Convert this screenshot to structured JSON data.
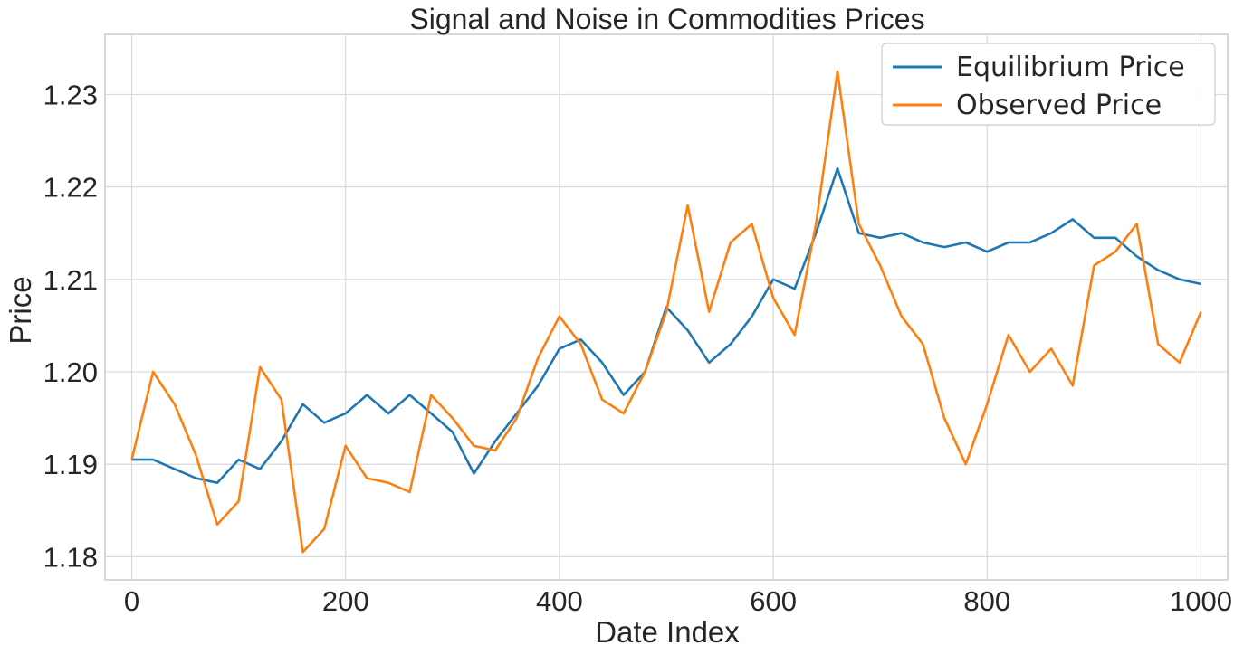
{
  "chart_data": {
    "type": "line",
    "title": "Signal and Noise in Commodities Prices",
    "xlabel": "Date Index",
    "ylabel": "Price",
    "xlim": [
      -25,
      1025
    ],
    "ylim": [
      1.1775,
      1.2365
    ],
    "xticks": [
      0,
      200,
      400,
      600,
      800,
      1000
    ],
    "xtick_labels": [
      "0",
      "200",
      "400",
      "600",
      "800",
      "1000"
    ],
    "yticks": [
      1.18,
      1.19,
      1.2,
      1.21,
      1.22,
      1.23
    ],
    "ytick_labels": [
      "1.18",
      "1.19",
      "1.20",
      "1.21",
      "1.22",
      "1.23"
    ],
    "grid": true,
    "legend_position": "top-right",
    "colors": {
      "Equilibrium Price": "#1f77b4",
      "Observed Price": "#ff7f0e"
    },
    "x": [
      0,
      20,
      40,
      60,
      80,
      100,
      120,
      140,
      160,
      180,
      200,
      220,
      240,
      260,
      280,
      300,
      320,
      340,
      360,
      380,
      400,
      420,
      440,
      460,
      480,
      500,
      520,
      540,
      560,
      580,
      600,
      620,
      640,
      660,
      680,
      700,
      720,
      740,
      760,
      780,
      800,
      820,
      840,
      860,
      880,
      900,
      920,
      940,
      960,
      980,
      1000
    ],
    "series": [
      {
        "name": "Equilibrium Price",
        "values": [
          1.1905,
          1.1905,
          1.1895,
          1.1885,
          1.188,
          1.1905,
          1.1895,
          1.1925,
          1.1965,
          1.1945,
          1.1955,
          1.1975,
          1.1955,
          1.1975,
          1.1955,
          1.1935,
          1.189,
          1.1925,
          1.1955,
          1.1985,
          1.2025,
          1.2035,
          1.201,
          1.1975,
          1.2,
          1.207,
          1.2045,
          1.201,
          1.203,
          1.206,
          1.21,
          1.209,
          1.215,
          1.222,
          1.215,
          1.2145,
          1.215,
          1.214,
          1.2135,
          1.214,
          1.213,
          1.214,
          1.214,
          1.215,
          1.2165,
          1.2145,
          1.2145,
          1.2125,
          1.211,
          1.21,
          1.2095
        ]
      },
      {
        "name": "Observed Price",
        "values": [
          1.1905,
          1.2,
          1.1965,
          1.191,
          1.1835,
          1.186,
          1.2005,
          1.197,
          1.1805,
          1.183,
          1.192,
          1.1885,
          1.188,
          1.187,
          1.1975,
          1.195,
          1.192,
          1.1915,
          1.195,
          1.2015,
          1.206,
          1.203,
          1.197,
          1.1955,
          1.2,
          1.2065,
          1.218,
          1.2065,
          1.214,
          1.216,
          1.208,
          1.204,
          1.216,
          1.2325,
          1.216,
          1.2115,
          1.206,
          1.203,
          1.195,
          1.19,
          1.1965,
          1.204,
          1.2,
          1.2025,
          1.1985,
          1.2115,
          1.213,
          1.216,
          1.203,
          1.201,
          1.2065
        ]
      }
    ]
  }
}
